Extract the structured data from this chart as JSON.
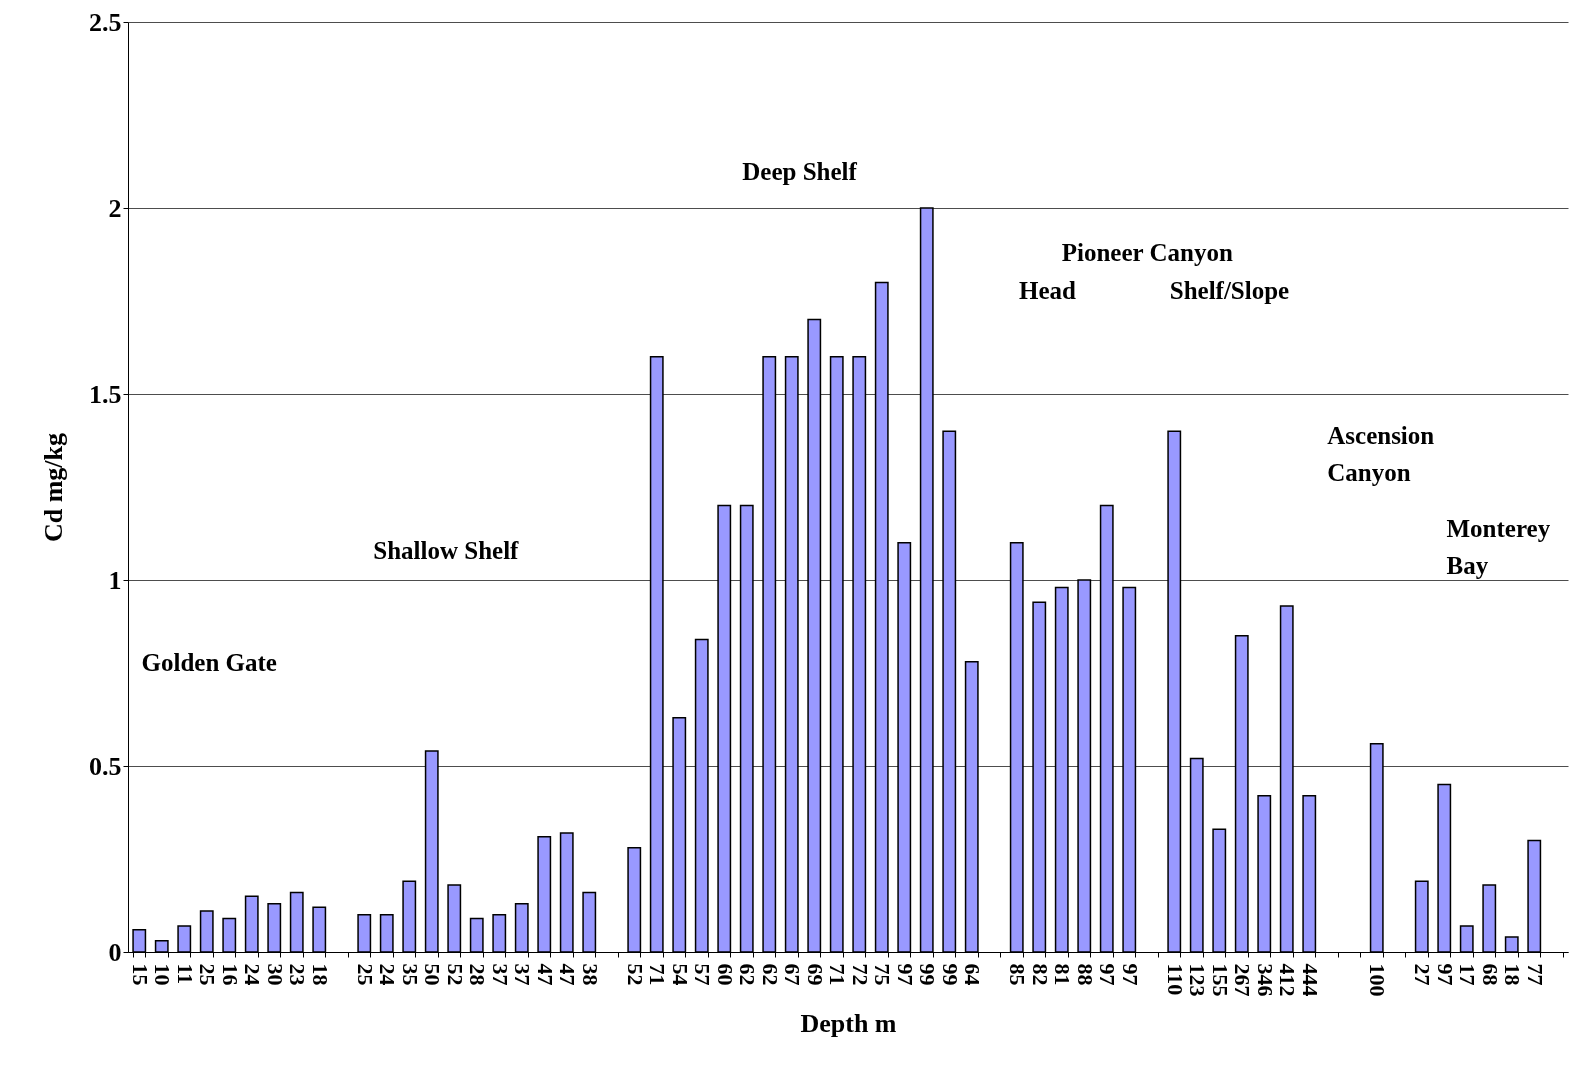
{
  "chart_data": {
    "type": "bar",
    "xlabel": "Depth m",
    "ylabel": "Cd mg/kg",
    "categories": [
      "15",
      "10",
      "11",
      "25",
      "16",
      "24",
      "30",
      "23",
      "18",
      null,
      "25",
      "24",
      "35",
      "50",
      "52",
      "28",
      "37",
      "37",
      "47",
      "47",
      "38",
      null,
      "52",
      "71",
      "54",
      "57",
      "60",
      "62",
      "62",
      "67",
      "69",
      "71",
      "72",
      "75",
      "97",
      "99",
      "99",
      "64",
      null,
      "85",
      "82",
      "81",
      "88",
      "97",
      "97",
      null,
      "110",
      "123",
      "155",
      "267",
      "346",
      "412",
      "444",
      null,
      null,
      "100",
      null,
      "27",
      "97",
      "17",
      "68",
      "18",
      "77",
      null
    ],
    "values": [
      0.06,
      0.03,
      0.07,
      0.11,
      0.09,
      0.15,
      0.13,
      0.16,
      0.12,
      null,
      0.1,
      0.1,
      0.19,
      0.54,
      0.18,
      0.09,
      0.1,
      0.13,
      0.31,
      0.32,
      0.16,
      null,
      0.28,
      1.6,
      0.63,
      0.84,
      1.2,
      1.2,
      1.6,
      1.6,
      1.7,
      1.6,
      1.6,
      1.8,
      1.1,
      2.0,
      1.4,
      0.78,
      null,
      1.1,
      0.94,
      0.98,
      1.0,
      1.2,
      0.98,
      null,
      1.4,
      0.52,
      0.33,
      0.85,
      0.42,
      0.93,
      0.42,
      null,
      null,
      0.56,
      null,
      0.19,
      0.45,
      0.07,
      0.18,
      0.04,
      0.3,
      null
    ],
    "color": "#9999ff",
    "ylim": [
      0,
      2.5
    ],
    "yticks": [
      0,
      {
        "value": 0.5,
        "label": "0.5"
      },
      1,
      1.5,
      2,
      2.5
    ],
    "grid": "y",
    "annotations": [
      "Golden Gate",
      "Shallow Shelf",
      "Deep Shelf",
      "Pioneer Canyon",
      "Head",
      "Shelf/Slope",
      "Ascension\nCanyon",
      "Monterey\nBay"
    ]
  }
}
